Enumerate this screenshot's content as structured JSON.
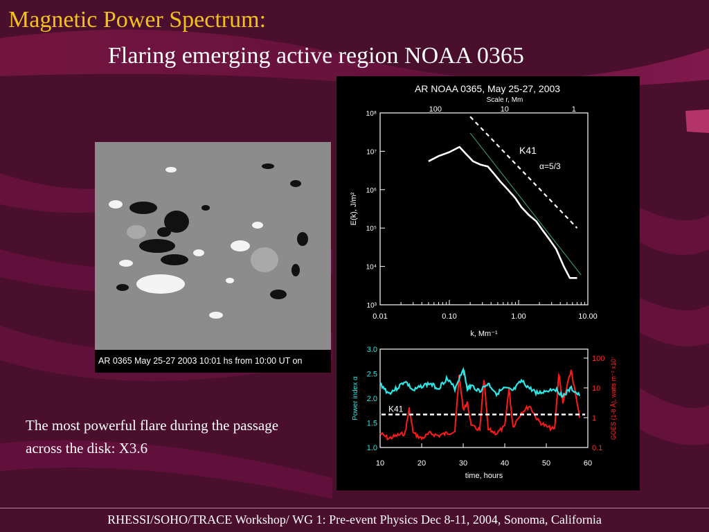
{
  "slide": {
    "title": "Magnetic Power Spectrum:",
    "subtitle": "Flaring emerging active region NOAA 0365",
    "magnetogram_caption": "AR 0365 May 25-27 2003 10:01 hs from 10:00 UT on",
    "body_text": "The most powerful flare during the passage across the disk: X3.6",
    "footer": "RHESSI/SOHO/TRACE Workshop/ WG 1: Pre-event Physics   Dec 8-11, 2004, Sonoma, California"
  },
  "colors": {
    "title": "#f2c21a",
    "background": "#4a0f2c",
    "power_index_series": "#2ee6e6",
    "goes_series": "#ff1a1a",
    "axis_right_label": "#ff2a2a",
    "axis_left_label": "#2ee6e6"
  },
  "chart_data": [
    {
      "type": "line",
      "title": "AR NOAA 0365,  May 25-27, 2003",
      "top_axis_label": "Scale r,  Mm",
      "top_ticks": [
        "100",
        "10",
        "1"
      ],
      "xlabel": "k, Mm⁻¹",
      "ylabel": "E(k), J/m²",
      "xscale": "log",
      "yscale": "log",
      "xlim": [
        0.01,
        10.0
      ],
      "ylim": [
        1000,
        100000000
      ],
      "xticks": [
        "0.01",
        "0.10",
        "1.00",
        "10.00"
      ],
      "yticks": [
        "10³",
        "10⁴",
        "10⁵",
        "10⁶",
        "10⁷",
        "10⁸"
      ],
      "annotation_label": "K41",
      "annotation_alpha": "α=5/3",
      "series": [
        {
          "x": [
            0.05,
            0.07,
            0.1,
            0.14,
            0.18,
            0.22,
            0.28,
            0.36,
            0.45,
            0.55,
            0.7,
            0.9,
            1.1,
            1.4,
            1.8,
            2.2,
            2.8,
            3.5,
            4.5,
            5.5,
            7.0
          ],
          "y": [
            5500000,
            7500000,
            9500000,
            13000000,
            8000000,
            5500000,
            4500000,
            4000000,
            2500000,
            1600000,
            1000000,
            600000,
            350000,
            220000,
            150000,
            90000,
            50000,
            28000,
            10000,
            5000,
            5000
          ]
        },
        {
          "x": [
            0.2,
            8.0
          ],
          "y": [
            30000000,
            6000
          ]
        },
        {
          "x": [
            0.2,
            7.0
          ],
          "y": [
            80000000,
            100000
          ]
        }
      ]
    },
    {
      "type": "line",
      "xlabel": "time, hours",
      "ylabel_left": "Power index α",
      "ylabel_right": "GOES (1-8 Å), watts m⁻² x10⁷",
      "xlim": [
        10,
        60
      ],
      "ylim_left": [
        1.0,
        3.0
      ],
      "xticks": [
        "10",
        "20",
        "30",
        "40",
        "50",
        "60"
      ],
      "yticks_left": [
        "1.0",
        "1.5",
        "2.0",
        "2.5",
        "3.0"
      ],
      "yticks_right": [
        "0.1",
        "1",
        "10",
        "100"
      ],
      "reference_label": "K41",
      "reference_value": 1.67,
      "series": [
        {
          "x": [
            10,
            12,
            14,
            16,
            18,
            20,
            22,
            24,
            26,
            28,
            30,
            31,
            32,
            34,
            36,
            38,
            40,
            42,
            44,
            46,
            48,
            50,
            52,
            54,
            56,
            58
          ],
          "y": [
            2.3,
            2.1,
            2.2,
            2.35,
            2.15,
            2.25,
            2.3,
            2.2,
            2.4,
            2.2,
            2.6,
            2.2,
            2.25,
            2.15,
            2.3,
            2.1,
            2.2,
            2.15,
            2.35,
            2.2,
            2.1,
            2.15,
            2.2,
            2.05,
            2.2,
            2.05
          ]
        },
        {
          "x": [
            10,
            12,
            14,
            16,
            17,
            18,
            20,
            22,
            24,
            26,
            28,
            29,
            30,
            31,
            32,
            34,
            35,
            36,
            38,
            40,
            41,
            42,
            44,
            46,
            48,
            50,
            52,
            53,
            54,
            56,
            58
          ],
          "y": [
            0.3,
            0.2,
            0.25,
            0.3,
            2.0,
            0.3,
            0.2,
            0.3,
            0.25,
            0.3,
            0.35,
            25.0,
            2.0,
            3.0,
            0.5,
            0.4,
            20.0,
            0.4,
            0.3,
            0.5,
            10.0,
            0.5,
            1.5,
            2.5,
            0.8,
            0.5,
            0.4,
            30.0,
            3.0,
            40.0,
            1.0
          ]
        }
      ]
    }
  ]
}
